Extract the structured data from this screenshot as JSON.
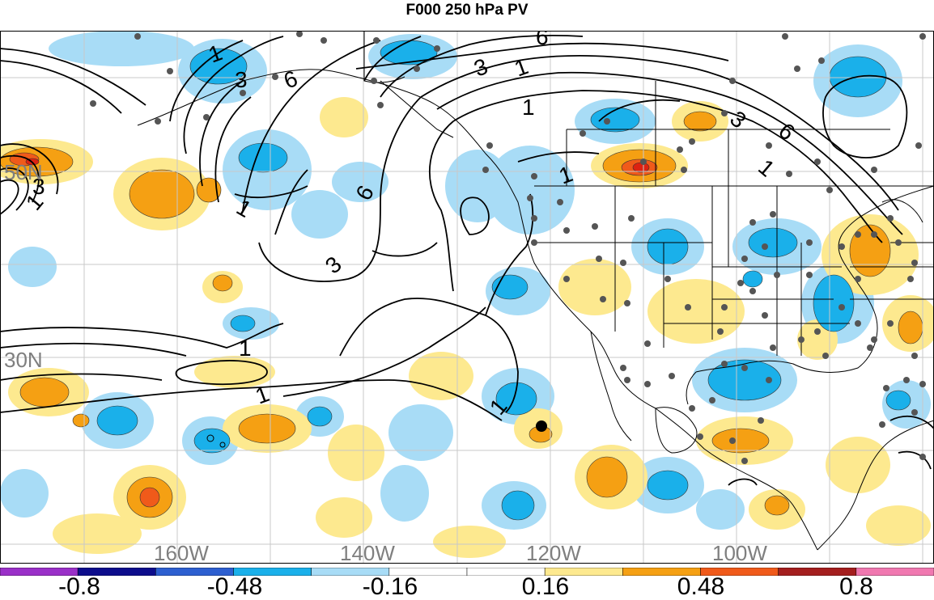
{
  "title": "F000 250 hPa PV",
  "map": {
    "type": "map",
    "projection": "lat-lon (north Pacific / North America)",
    "longitude_labels": [
      "160W",
      "140W",
      "120W",
      "100W"
    ],
    "latitude_labels": [
      "50N",
      "30N"
    ],
    "contour_labels": [
      "1",
      "3",
      "6"
    ],
    "fill_colors": {
      "neg_light": "#a8dcf6",
      "neg_mid": "#1ab0ea",
      "pos_light": "#fde98f",
      "pos_mid": "#f5a013",
      "pos_strong": "#f05a1a",
      "pos_max": "#dd2211"
    },
    "station_dot_color": "#555555",
    "grid_color": "#c8c8c8",
    "label_color": "#7f7f7f",
    "marker": "black dot near 23N 117W"
  },
  "colorbar": {
    "labels": [
      "-0.8",
      "-0.48",
      "-0.16",
      "0.16",
      "0.48",
      "0.8"
    ],
    "colors": [
      "#9a30c8",
      "#0d0d8c",
      "#2d5fd0",
      "#1ab0ea",
      "#a8dcf6",
      "#ffffff",
      "#ffffff",
      "#fde98f",
      "#f5a013",
      "#f05a1a",
      "#a41e1e",
      "#f078b0"
    ]
  }
}
